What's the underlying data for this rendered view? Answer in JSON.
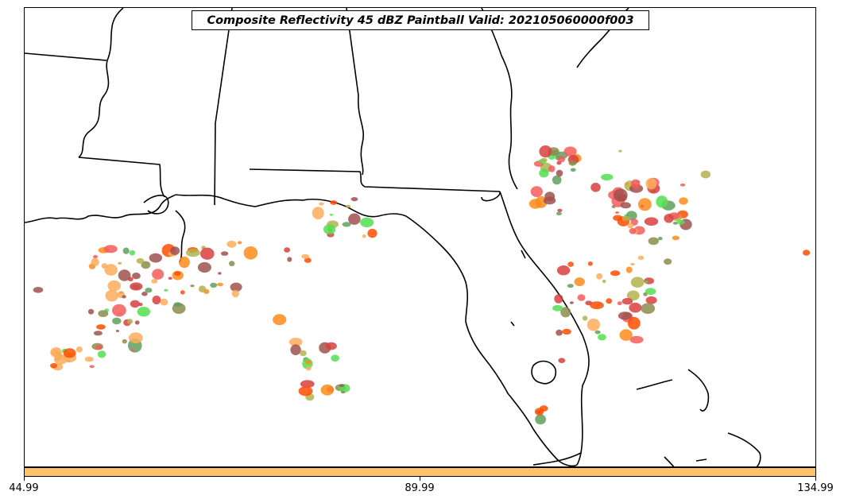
{
  "title": "Composite Reflectivity 45 dBZ Paintball Valid: 202105060000f003",
  "colors": {
    "colorbar_fill": "#ffc266",
    "border_line": "#000000",
    "paintball_palette": [
      "#a0524f",
      "#f55c5c",
      "#ff4d00",
      "#ff8c1a",
      "#ffad5c",
      "#b3b34d",
      "#5fa05f",
      "#50e050",
      "#8c8c4d",
      "#d94040"
    ]
  },
  "colorbar": {
    "tick_labels": [
      "44.99",
      "89.99",
      "134.99"
    ]
  }
}
